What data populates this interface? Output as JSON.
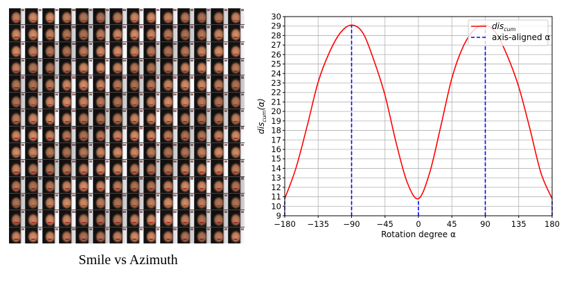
{
  "figure_caption": "Smile vs Azimuth",
  "face_grid": {
    "rows": 14,
    "cols": 14
  },
  "chart_data": {
    "type": "line",
    "title": "",
    "xlabel": "Rotation degree α",
    "ylabel_main": "dis",
    "ylabel_sub": "cum",
    "ylabel_tail": "(α)",
    "xlim": [
      -180,
      180
    ],
    "ylim": [
      9,
      30
    ],
    "xticks": [
      -180,
      -135,
      -90,
      -45,
      0,
      45,
      90,
      135,
      180
    ],
    "xtick_labels": [
      "−180",
      "−135",
      "−90",
      "−45",
      "0",
      "45",
      "90",
      "135",
      "180"
    ],
    "yticks": [
      9,
      10,
      11,
      12,
      13,
      14,
      15,
      16,
      17,
      18,
      19,
      20,
      21,
      22,
      23,
      24,
      25,
      26,
      27,
      28,
      29,
      30
    ],
    "grid": true,
    "legend_position": "top-right",
    "series": [
      {
        "name": "dis_cum",
        "legend_main": "dis",
        "legend_sub": "cum",
        "color": "#ff0000",
        "style": "solid",
        "x": [
          -180,
          -165,
          -150,
          -135,
          -120,
          -105,
          -90,
          -75,
          -60,
          -45,
          -30,
          -15,
          0,
          15,
          30,
          45,
          60,
          75,
          90,
          105,
          120,
          135,
          150,
          165,
          180
        ],
        "y": [
          10.8,
          14.0,
          18.4,
          23.1,
          26.2,
          28.3,
          29.1,
          28.3,
          25.4,
          21.7,
          16.7,
          12.5,
          10.8,
          13.5,
          18.4,
          23.5,
          26.8,
          28.6,
          29.1,
          28.2,
          25.8,
          22.6,
          18.2,
          13.5,
          10.8
        ]
      },
      {
        "name": "axis-aligned α",
        "legend_label": "axis-aligned α",
        "color": "#0000ff",
        "style": "dashed",
        "vlines_x": [
          -180,
          -90,
          0,
          90,
          180
        ],
        "vlines_top_y": [
          10.8,
          29.1,
          10.8,
          29.1,
          10.8
        ]
      }
    ]
  }
}
